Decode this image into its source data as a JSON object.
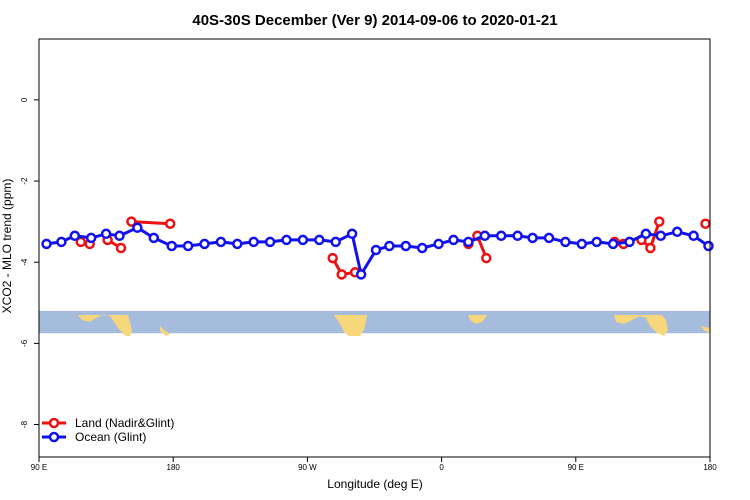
{
  "chart_data": {
    "type": "line",
    "title": "40S-30S December (Ver 9)   2014-09-06 to 2020-01-21",
    "xlabel": "Longitude (deg E)",
    "ylabel": "XCO2 - MLO trend (ppm)",
    "x_unit": "degrees east, unwrapped (90 = 90 E, 180, 270 = 90 W, 360 = 0, 450 = 90 E, 540 = 180)",
    "xlim": [
      90,
      540
    ],
    "ylim": [
      -8.8,
      1.5
    ],
    "x_ticks": [
      {
        "value": 90,
        "label": "90 E"
      },
      {
        "value": 180,
        "label": "180"
      },
      {
        "value": 270,
        "label": "90 W"
      },
      {
        "value": 360,
        "label": "0"
      },
      {
        "value": 450,
        "label": "90 E"
      },
      {
        "value": 540,
        "label": "180"
      }
    ],
    "y_ticks": [
      {
        "value": 0,
        "label": "0"
      },
      {
        "value": -2,
        "label": "-2"
      },
      {
        "value": -4,
        "label": "-4"
      },
      {
        "value": -6,
        "label": "-6"
      },
      {
        "value": -8,
        "label": "-8"
      }
    ],
    "grid": false,
    "legend_position": "bottom-left",
    "map_band": {
      "y_top": -5.2,
      "y_bottom": -5.75,
      "ocean_color": "#a5bcdc",
      "land_color": "#f7d77b"
    },
    "series": [
      {
        "name": "Land (Nadir&Glint)",
        "color": "#ee1111",
        "segments": [
          [
            [
              118,
              -3.5
            ],
            [
              124,
              -3.55
            ]
          ],
          [
            [
              136,
              -3.45
            ],
            [
              145,
              -3.65
            ]
          ],
          [
            [
              152,
              -3.0
            ],
            [
              178,
              -3.05
            ]
          ],
          [
            [
              287,
              -3.9
            ],
            [
              293,
              -4.3
            ],
            [
              302,
              -4.25
            ]
          ],
          [
            [
              378,
              -3.55
            ],
            [
              384,
              -3.35
            ],
            [
              390,
              -3.9
            ]
          ],
          [
            [
              476,
              -3.5
            ],
            [
              482,
              -3.55
            ]
          ],
          [
            [
              494,
              -3.45
            ],
            [
              500,
              -3.65
            ],
            [
              506,
              -3.0
            ]
          ],
          [
            [
              537,
              -3.05
            ]
          ]
        ]
      },
      {
        "name": "Ocean (Glint)",
        "color": "#1111ee",
        "segments": [
          [
            [
              95,
              -3.55
            ],
            [
              105,
              -3.5
            ],
            [
              114,
              -3.35
            ],
            [
              125,
              -3.4
            ],
            [
              135,
              -3.3
            ],
            [
              144,
              -3.35
            ],
            [
              156,
              -3.15
            ],
            [
              167,
              -3.4
            ],
            [
              179,
              -3.6
            ],
            [
              190,
              -3.6
            ],
            [
              201,
              -3.55
            ],
            [
              212,
              -3.5
            ],
            [
              223,
              -3.55
            ],
            [
              234,
              -3.5
            ],
            [
              245,
              -3.5
            ],
            [
              256,
              -3.45
            ],
            [
              267,
              -3.45
            ],
            [
              278,
              -3.45
            ],
            [
              289,
              -3.5
            ],
            [
              300,
              -3.3
            ],
            [
              306,
              -4.3
            ],
            [
              316,
              -3.7
            ],
            [
              325,
              -3.6
            ],
            [
              336,
              -3.6
            ],
            [
              347,
              -3.65
            ],
            [
              358,
              -3.55
            ],
            [
              368,
              -3.45
            ],
            [
              378,
              -3.5
            ],
            [
              389,
              -3.35
            ],
            [
              400,
              -3.35
            ],
            [
              411,
              -3.35
            ],
            [
              421,
              -3.4
            ],
            [
              432,
              -3.4
            ],
            [
              443,
              -3.5
            ],
            [
              454,
              -3.55
            ],
            [
              464,
              -3.5
            ],
            [
              475,
              -3.55
            ],
            [
              486,
              -3.5
            ],
            [
              497,
              -3.3
            ],
            [
              507,
              -3.35
            ],
            [
              518,
              -3.25
            ],
            [
              529,
              -3.35
            ],
            [
              539,
              -3.6
            ]
          ]
        ]
      }
    ]
  }
}
